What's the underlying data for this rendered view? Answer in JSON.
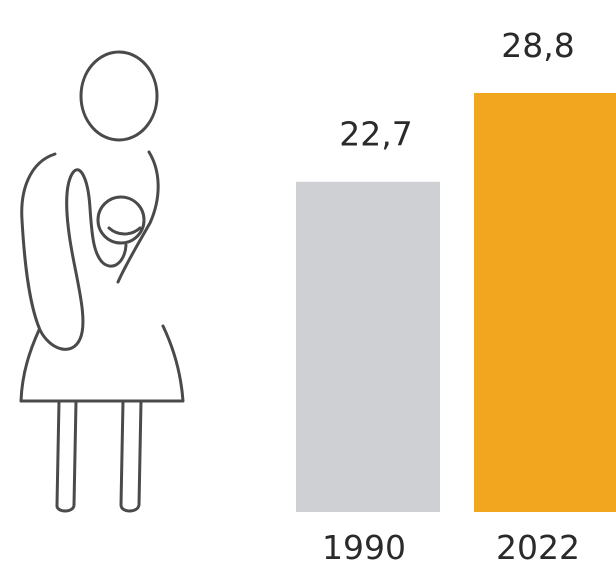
{
  "chart_data": {
    "type": "bar",
    "categories": [
      "1990",
      "2022"
    ],
    "values": [
      22.7,
      28.8
    ],
    "value_labels": [
      "22,7",
      "28,8"
    ],
    "bar_colors": [
      "#cfd0d3",
      "#f2a51f"
    ],
    "title": "",
    "xlabel": "",
    "ylabel": "",
    "ylim": [
      0,
      28.8
    ],
    "grid": false,
    "legend": "none"
  },
  "icon": {
    "name": "mother-with-baby-icon"
  }
}
